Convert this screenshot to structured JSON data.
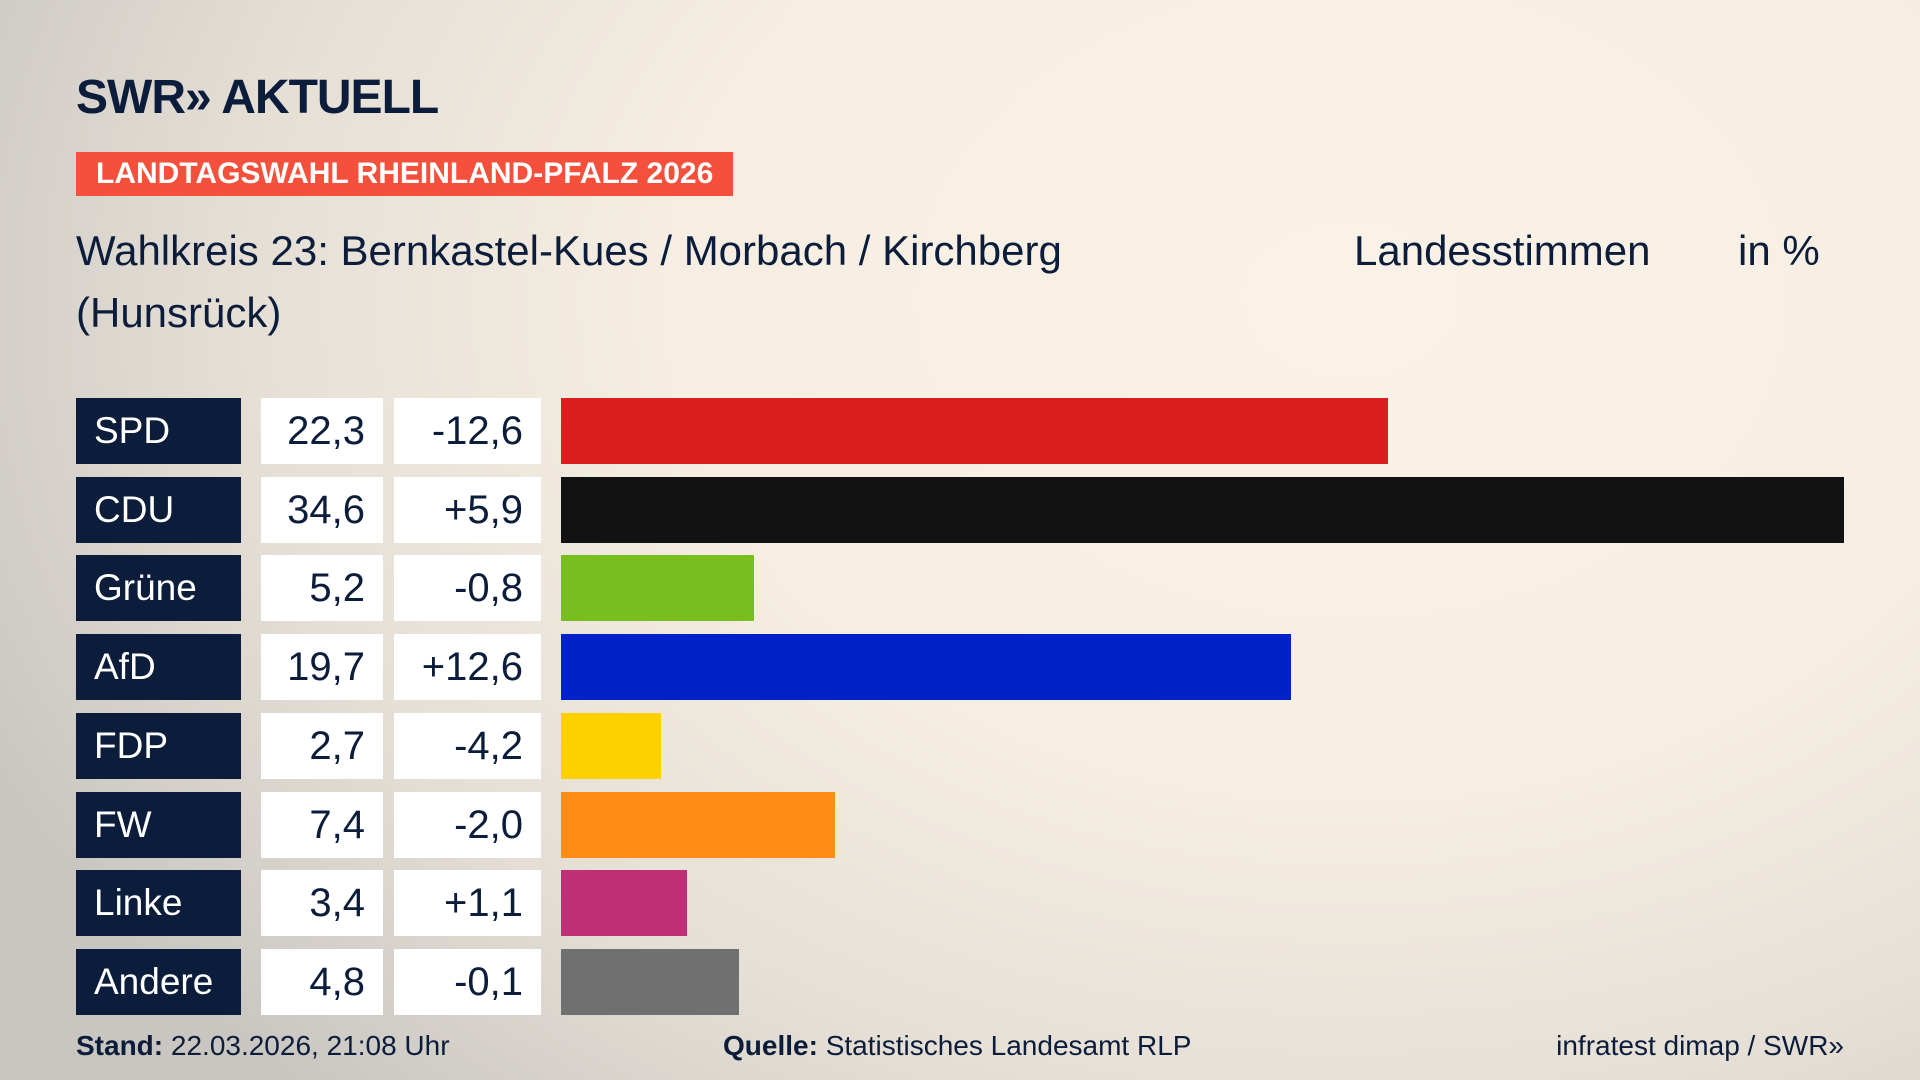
{
  "header": {
    "logo": "SWR» AKTUELL",
    "banner": "LANDTAGSWAHL RHEINLAND-PFALZ 2026",
    "title": "Wahlkreis 23: Bernkastel-Kues / Morbach / Kirchberg (Hunsrück)",
    "measure": "Landesstimmen",
    "unit": "in %"
  },
  "chart_data": {
    "type": "bar",
    "orientation": "horizontal",
    "categories": [
      "SPD",
      "CDU",
      "Grüne",
      "AfD",
      "FDP",
      "FW",
      "Linke",
      "Andere"
    ],
    "values": [
      22.3,
      34.6,
      5.2,
      19.7,
      2.7,
      7.4,
      3.4,
      4.8
    ],
    "value_labels": [
      "22,3",
      "34,6",
      "5,2",
      "19,7",
      "2,7",
      "7,4",
      "3,4",
      "4,8"
    ],
    "changes": [
      -12.6,
      5.9,
      -0.8,
      12.6,
      -4.2,
      -2.0,
      1.1,
      -0.1
    ],
    "change_labels": [
      "-12,6",
      "+5,9",
      "-0,8",
      "+12,6",
      "-4,2",
      "-2,0",
      "+1,1",
      "-0,1"
    ],
    "colors": [
      "#d81e1e",
      "#121212",
      "#78be1e",
      "#0022c8",
      "#ffd000",
      "#ff8c17",
      "#be2f76",
      "#707070"
    ],
    "xlim": [
      0,
      34.6
    ]
  },
  "footer": {
    "stand_label": "Stand:",
    "stand_value": "22.03.2026, 21:08 Uhr",
    "source_label": "Quelle:",
    "source_value": "Statistisches Landesamt RLP",
    "credit": "infratest dimap / SWR»"
  }
}
